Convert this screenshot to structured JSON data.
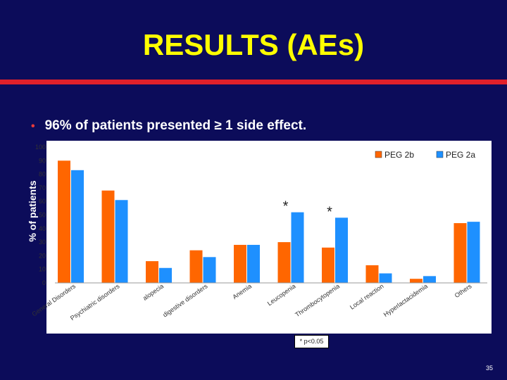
{
  "slide": {
    "title": "RESULTS (AEs)",
    "bullet_marker": "•",
    "bullet_text": "96% of patients presented ≥ 1 side effect.",
    "footnote": "* p<0.05",
    "page_number": "35"
  },
  "colors": {
    "background": "#0c0c5a",
    "title": "#ffff00",
    "accent_bar": "#e0202a",
    "peg2b": "#ff6600",
    "peg2a": "#1e90ff"
  },
  "chart_data": {
    "type": "bar",
    "title": "",
    "xlabel": "",
    "ylabel": "% of patients",
    "ylim": [
      0,
      100
    ],
    "yticks": [
      "0",
      "10",
      "20",
      "30",
      "40",
      "50",
      "60",
      "70",
      "80",
      "90",
      "100"
    ],
    "grid": false,
    "legend_position": "top-right",
    "categories": [
      "General Disorders",
      "Psychiatric disorders",
      "alopecia",
      "digestive disorders",
      "Anemia",
      "Leucopenia",
      "Thrombocytopenia",
      "Local reaction",
      "Hyperlactacidemia",
      "Others"
    ],
    "series": [
      {
        "name": "PEG 2b",
        "values": [
          90,
          68,
          16,
          24,
          28,
          30,
          26,
          13,
          3,
          44
        ]
      },
      {
        "name": "PEG 2a",
        "values": [
          83,
          61,
          11,
          19,
          28,
          52,
          48,
          7,
          5,
          45
        ]
      }
    ],
    "annotations": [
      {
        "text": "*",
        "category": "Leucopenia"
      },
      {
        "text": "*",
        "category": "Thrombocytopenia"
      }
    ]
  }
}
